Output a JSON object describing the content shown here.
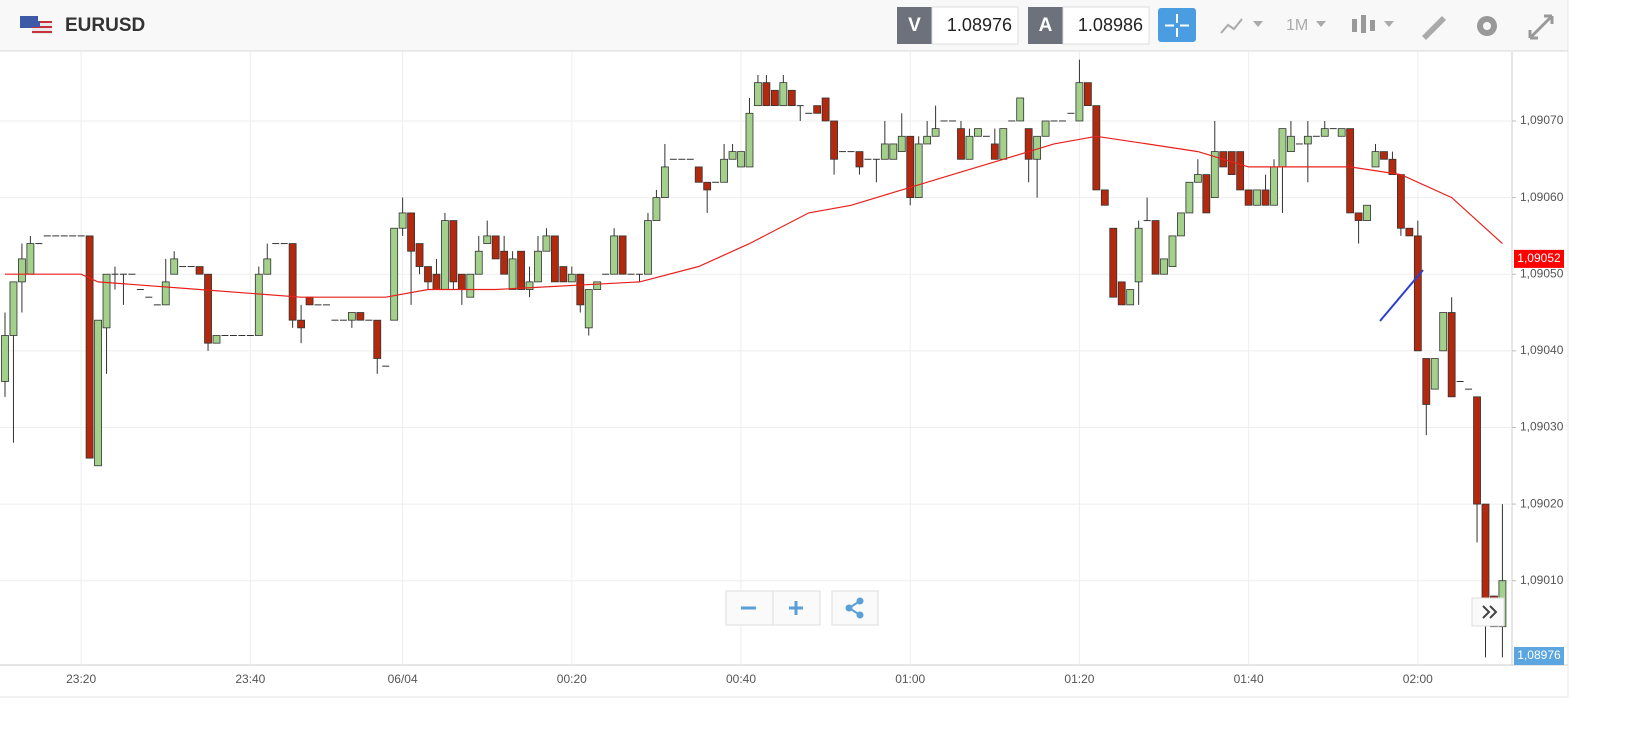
{
  "header": {
    "symbol": "EURUSD",
    "sell_label": "V",
    "sell": "1.08976",
    "buy_label": "A",
    "buy": "1.08986",
    "timeframe": "1M"
  },
  "bottom_price": "1,08976",
  "chart_data": {
    "type": "candlestick",
    "categories": [
      null,
      null,
      null,
      null,
      null,
      null,
      null,
      null,
      null,
      "23:20",
      null,
      null,
      null,
      null,
      null,
      null,
      null,
      null,
      null,
      null,
      null,
      null,
      null,
      null,
      null,
      null,
      null,
      null,
      null,
      "23:40",
      null,
      null,
      null,
      null,
      null,
      null,
      null,
      null,
      null,
      null,
      null,
      null,
      null,
      null,
      null,
      null,
      null,
      "06/04",
      null,
      null,
      null,
      null,
      null,
      null,
      null,
      null,
      null,
      null,
      null,
      null,
      null,
      null,
      null,
      null,
      null,
      null,
      null,
      "00:20",
      null,
      null,
      null,
      null,
      null,
      null,
      null,
      null,
      null,
      null,
      null,
      null,
      null,
      null,
      null,
      null,
      null,
      null,
      null,
      "00:40",
      null,
      null,
      null,
      null,
      null,
      null,
      null,
      null,
      null,
      null,
      null,
      null,
      null,
      null,
      null,
      null,
      null,
      null,
      null,
      "01:00",
      null,
      null,
      null,
      null,
      null,
      null,
      null,
      null,
      null,
      null,
      null,
      null,
      null,
      null,
      null,
      null,
      null,
      null,
      null,
      "01:20",
      null,
      null,
      null,
      null,
      null,
      null,
      null,
      null,
      null,
      null,
      null,
      null,
      null,
      null,
      null,
      null,
      null,
      null,
      null,
      "01:40",
      null,
      null,
      null,
      null,
      null,
      null,
      null,
      null,
      null,
      null,
      null,
      null,
      null,
      null,
      null,
      null,
      null,
      null,
      null,
      "02:00",
      null,
      null,
      null,
      null,
      null,
      null,
      null,
      null,
      null,
      null
    ],
    "ohlc": [
      [
        1.09036,
        1.09045,
        1.09034,
        1.09042
      ],
      [
        1.09042,
        1.09049,
        1.09028,
        1.09049
      ],
      [
        1.09049,
        1.09054,
        1.09045,
        1.09052
      ],
      [
        1.0905,
        1.09055,
        1.0905,
        1.09054
      ],
      [
        1.09054,
        1.09054,
        1.09054,
        1.09054
      ],
      [
        1.09055,
        1.09055,
        1.09055,
        1.09055
      ],
      [
        1.09055,
        1.09055,
        1.09055,
        1.09055
      ],
      [
        1.09055,
        1.09055,
        1.09055,
        1.09055
      ],
      [
        1.09055,
        1.09055,
        1.09055,
        1.09055
      ],
      [
        1.09055,
        1.09055,
        1.09055,
        1.09055
      ],
      [
        1.09055,
        1.09055,
        1.09026,
        1.09026
      ],
      [
        1.09025,
        1.09044,
        1.09025,
        1.09044
      ],
      [
        1.09043,
        1.0905,
        1.09037,
        1.0905
      ],
      [
        1.0905,
        1.09051,
        1.09048,
        1.0905
      ],
      [
        1.0905,
        1.0905,
        1.09046,
        1.0905
      ],
      [
        1.0905,
        1.0905,
        1.0905,
        1.0905
      ],
      [
        1.09048,
        1.09048,
        1.09048,
        1.09048
      ],
      [
        1.09047,
        1.09047,
        1.09047,
        1.09047
      ],
      [
        1.09046,
        1.09046,
        1.09046,
        1.09046
      ],
      [
        1.09046,
        1.09052,
        1.09046,
        1.09049
      ],
      [
        1.0905,
        1.09053,
        1.0905,
        1.09052
      ],
      [
        1.09051,
        1.09051,
        1.09051,
        1.09051
      ],
      [
        1.09051,
        1.09051,
        1.09051,
        1.09051
      ],
      [
        1.09051,
        1.09051,
        1.0905,
        1.0905
      ],
      [
        1.0905,
        1.0905,
        1.0904,
        1.09041
      ],
      [
        1.09041,
        1.09042,
        1.09041,
        1.09042
      ],
      [
        1.09042,
        1.09042,
        1.09042,
        1.09042
      ],
      [
        1.09042,
        1.09042,
        1.09042,
        1.09042
      ],
      [
        1.09042,
        1.09042,
        1.09042,
        1.09042
      ],
      [
        1.09042,
        1.09042,
        1.09042,
        1.09042
      ],
      [
        1.09042,
        1.09051,
        1.09042,
        1.0905
      ],
      [
        1.0905,
        1.09054,
        1.0905,
        1.09052
      ],
      [
        1.09054,
        1.09054,
        1.09054,
        1.09054
      ],
      [
        1.09054,
        1.09054,
        1.09054,
        1.09054
      ],
      [
        1.09054,
        1.09054,
        1.09043,
        1.09044
      ],
      [
        1.09044,
        1.09046,
        1.09041,
        1.09043
      ],
      [
        1.09047,
        1.09047,
        1.09046,
        1.09046
      ],
      [
        1.09046,
        1.09046,
        1.09046,
        1.09046
      ],
      [
        1.09046,
        1.09046,
        1.09046,
        1.09046
      ],
      [
        1.09044,
        1.09044,
        1.09044,
        1.09044
      ],
      [
        1.09044,
        1.09044,
        1.09044,
        1.09044
      ],
      [
        1.09044,
        1.09045,
        1.09043,
        1.09045
      ],
      [
        1.09045,
        1.09045,
        1.09044,
        1.09044
      ],
      [
        1.09044,
        1.09044,
        1.09044,
        1.09044
      ],
      [
        1.09044,
        1.09044,
        1.09037,
        1.09039
      ],
      [
        1.09038,
        1.09038,
        1.09038,
        1.09038
      ],
      [
        1.09044,
        1.09056,
        1.09044,
        1.09056
      ],
      [
        1.09056,
        1.0906,
        1.09055,
        1.09058
      ],
      [
        1.09058,
        1.09058,
        1.09046,
        1.09053
      ],
      [
        1.09054,
        1.09054,
        1.0905,
        1.09051
      ],
      [
        1.09051,
        1.09051,
        1.09048,
        1.09049
      ],
      [
        1.0905,
        1.09052,
        1.09048,
        1.09048
      ],
      [
        1.09048,
        1.09058,
        1.09048,
        1.09057
      ],
      [
        1.09057,
        1.09057,
        1.09048,
        1.09049
      ],
      [
        1.0905,
        1.0905,
        1.09046,
        1.09048
      ],
      [
        1.09047,
        1.0905,
        1.09047,
        1.0905
      ],
      [
        1.0905,
        1.09055,
        1.0905,
        1.09053
      ],
      [
        1.09054,
        1.09057,
        1.09054,
        1.09055
      ],
      [
        1.09055,
        1.09055,
        1.09052,
        1.09052
      ],
      [
        1.09053,
        1.09055,
        1.0905,
        1.0905
      ],
      [
        1.09048,
        1.09053,
        1.09048,
        1.09052
      ],
      [
        1.09053,
        1.09053,
        1.09048,
        1.09048
      ],
      [
        1.09048,
        1.09051,
        1.09047,
        1.09049
      ],
      [
        1.09049,
        1.09055,
        1.09049,
        1.09053
      ],
      [
        1.09053,
        1.09056,
        1.09053,
        1.09055
      ],
      [
        1.09055,
        1.09055,
        1.09049,
        1.09049
      ],
      [
        1.09051,
        1.09051,
        1.09049,
        1.09049
      ],
      [
        1.09049,
        1.09051,
        1.09049,
        1.0905
      ],
      [
        1.0905,
        1.0905,
        1.09045,
        1.09046
      ],
      [
        1.09043,
        1.09048,
        1.09042,
        1.09048
      ],
      [
        1.09048,
        1.09049,
        1.09048,
        1.09049
      ],
      [
        1.0905,
        1.0905,
        1.0905,
        1.0905
      ],
      [
        1.0905,
        1.09056,
        1.0905,
        1.09055
      ],
      [
        1.09055,
        1.09055,
        1.0905,
        1.0905
      ],
      [
        1.0905,
        1.0905,
        1.0905,
        1.0905
      ],
      [
        1.0905,
        1.0905,
        1.09049,
        1.0905
      ],
      [
        1.0905,
        1.09058,
        1.0905,
        1.09057
      ],
      [
        1.09057,
        1.09061,
        1.09057,
        1.0906
      ],
      [
        1.0906,
        1.09067,
        1.0906,
        1.09064
      ],
      [
        1.09065,
        1.09065,
        1.09065,
        1.09065
      ],
      [
        1.09065,
        1.09065,
        1.09065,
        1.09065
      ],
      [
        1.09065,
        1.09065,
        1.09065,
        1.09065
      ],
      [
        1.09064,
        1.09064,
        1.09062,
        1.09062
      ],
      [
        1.09062,
        1.09062,
        1.09058,
        1.09061
      ],
      [
        1.09062,
        1.09062,
        1.09062,
        1.09062
      ],
      [
        1.09062,
        1.09067,
        1.09062,
        1.09065
      ],
      [
        1.09065,
        1.09067,
        1.09065,
        1.09066
      ],
      [
        1.09064,
        1.09066,
        1.09064,
        1.09066
      ],
      [
        1.09064,
        1.09073,
        1.09064,
        1.09071
      ],
      [
        1.09072,
        1.09076,
        1.09072,
        1.09075
      ],
      [
        1.09075,
        1.09076,
        1.09072,
        1.09072
      ],
      [
        1.09074,
        1.09074,
        1.09072,
        1.09072
      ],
      [
        1.09072,
        1.09076,
        1.09072,
        1.09075
      ],
      [
        1.09074,
        1.09074,
        1.09072,
        1.09072
      ],
      [
        1.09072,
        1.09072,
        1.0907,
        1.09072
      ],
      [
        1.09071,
        1.09071,
        1.09071,
        1.09071
      ],
      [
        1.09072,
        1.09072,
        1.09071,
        1.09071
      ],
      [
        1.09073,
        1.09073,
        1.0907,
        1.0907
      ],
      [
        1.0907,
        1.0907,
        1.09063,
        1.09065
      ],
      [
        1.09066,
        1.09066,
        1.09066,
        1.09066
      ],
      [
        1.09066,
        1.09066,
        1.09066,
        1.09066
      ],
      [
        1.09066,
        1.09066,
        1.09063,
        1.09064
      ],
      [
        1.09065,
        1.09065,
        1.09065,
        1.09065
      ],
      [
        1.09065,
        1.09065,
        1.09062,
        1.09065
      ],
      [
        1.09065,
        1.0907,
        1.09065,
        1.09067
      ],
      [
        1.09065,
        1.09067,
        1.09065,
        1.09067
      ],
      [
        1.09066,
        1.09071,
        1.09066,
        1.09068
      ],
      [
        1.09068,
        1.09068,
        1.09059,
        1.0906
      ],
      [
        1.0906,
        1.09068,
        1.0906,
        1.09067
      ],
      [
        1.09067,
        1.0907,
        1.09067,
        1.09068
      ],
      [
        1.09068,
        1.09072,
        1.09068,
        1.09069
      ],
      [
        1.0907,
        1.0907,
        1.0907,
        1.0907
      ],
      [
        1.0907,
        1.0907,
        1.0907,
        1.0907
      ],
      [
        1.09069,
        1.0907,
        1.09065,
        1.09065
      ],
      [
        1.09065,
        1.09069,
        1.09065,
        1.09068
      ],
      [
        1.09068,
        1.09069,
        1.09068,
        1.09069
      ],
      [
        1.09068,
        1.09068,
        1.09068,
        1.09068
      ],
      [
        1.09067,
        1.09069,
        1.09065,
        1.09065
      ],
      [
        1.09065,
        1.09069,
        1.09065,
        1.09069
      ],
      [
        1.0907,
        1.0907,
        1.0907,
        1.0907
      ],
      [
        1.0907,
        1.09073,
        1.0907,
        1.09073
      ],
      [
        1.09069,
        1.09069,
        1.09062,
        1.09065
      ],
      [
        1.09065,
        1.09068,
        1.0906,
        1.09068
      ],
      [
        1.09068,
        1.0907,
        1.09068,
        1.0907
      ],
      [
        1.0907,
        1.0907,
        1.0907,
        1.0907
      ],
      [
        1.0907,
        1.0907,
        1.0907,
        1.0907
      ],
      [
        1.09071,
        1.09071,
        1.09071,
        1.09071
      ],
      [
        1.0907,
        1.09078,
        1.0907,
        1.09075
      ],
      [
        1.09075,
        1.09075,
        1.09072,
        1.09072
      ],
      [
        1.09072,
        1.09072,
        1.09061,
        1.09061
      ],
      [
        1.09061,
        1.09061,
        1.09059,
        1.09059
      ],
      [
        1.09056,
        1.09056,
        1.09047,
        1.09047
      ],
      [
        1.09049,
        1.09049,
        1.09046,
        1.09046
      ],
      [
        1.09046,
        1.09048,
        1.09046,
        1.09048
      ],
      [
        1.09049,
        1.09057,
        1.09046,
        1.09056
      ],
      [
        1.09057,
        1.0906,
        1.09057,
        1.09057
      ],
      [
        1.09057,
        1.09057,
        1.0905,
        1.0905
      ],
      [
        1.0905,
        1.09052,
        1.0905,
        1.09052
      ],
      [
        1.09051,
        1.09055,
        1.09051,
        1.09055
      ],
      [
        1.09055,
        1.09058,
        1.09055,
        1.09058
      ],
      [
        1.09058,
        1.09062,
        1.09058,
        1.09062
      ],
      [
        1.09062,
        1.09065,
        1.09062,
        1.09063
      ],
      [
        1.09063,
        1.09063,
        1.09058,
        1.09058
      ],
      [
        1.0906,
        1.0907,
        1.0906,
        1.09066
      ],
      [
        1.09066,
        1.09066,
        1.09064,
        1.09064
      ],
      [
        1.09066,
        1.09066,
        1.09063,
        1.09063
      ],
      [
        1.09066,
        1.09066,
        1.09061,
        1.09061
      ],
      [
        1.09061,
        1.09061,
        1.09059,
        1.09059
      ],
      [
        1.09059,
        1.09061,
        1.09059,
        1.09061
      ],
      [
        1.09061,
        1.09063,
        1.09059,
        1.09059
      ],
      [
        1.09059,
        1.09065,
        1.09059,
        1.09064
      ],
      [
        1.09064,
        1.09069,
        1.09058,
        1.09069
      ],
      [
        1.09066,
        1.0907,
        1.09066,
        1.09068
      ],
      [
        1.09067,
        1.09067,
        1.09067,
        1.09067
      ],
      [
        1.09067,
        1.0907,
        1.09062,
        1.09068
      ],
      [
        1.09068,
        1.09068,
        1.09068,
        1.09068
      ],
      [
        1.09068,
        1.0907,
        1.09068,
        1.09069
      ],
      [
        1.09069,
        1.09069,
        1.09069,
        1.09069
      ],
      [
        1.09068,
        1.09069,
        1.09068,
        1.09069
      ],
      [
        1.09069,
        1.09069,
        1.09058,
        1.09058
      ],
      [
        1.09058,
        1.09058,
        1.09054,
        1.09057
      ],
      [
        1.09057,
        1.09059,
        1.09057,
        1.09059
      ],
      [
        1.09064,
        1.09067,
        1.09064,
        1.09066
      ],
      [
        1.09066,
        1.09066,
        1.09065,
        1.09065
      ],
      [
        1.09065,
        1.09066,
        1.09063,
        1.09063
      ],
      [
        1.09063,
        1.09063,
        1.09055,
        1.09056
      ],
      [
        1.09056,
        1.09056,
        1.09055,
        1.09055
      ],
      [
        1.09055,
        1.09057,
        1.0904,
        1.0904
      ],
      [
        1.09039,
        1.09039,
        1.09029,
        1.09033
      ],
      [
        1.09035,
        1.09039,
        1.09035,
        1.09039
      ],
      [
        1.0904,
        1.09045,
        1.0904,
        1.09045
      ],
      [
        1.09045,
        1.09047,
        1.09034,
        1.09034
      ],
      [
        1.09036,
        1.09036,
        1.09036,
        1.09036
      ],
      [
        1.09035,
        1.09035,
        1.09035,
        1.09035
      ],
      [
        1.09034,
        1.09034,
        1.09015,
        1.0902
      ],
      [
        1.0902,
        1.0902,
        1.09,
        1.09007
      ],
      [
        1.09008,
        1.09008,
        1.09004,
        1.09004
      ],
      [
        1.09004,
        1.0902,
        1.09,
        1.0901
      ]
    ],
    "up_color": "#a3d08a",
    "down_color": "#b3290d",
    "ylim": [
      1.08999,
      1.09079
    ],
    "yticks": [
      {
        "value": 1.0901,
        "label": "1,09010"
      },
      {
        "value": 1.0902,
        "label": "1,09020"
      },
      {
        "value": 1.0903,
        "label": "1,09030"
      },
      {
        "value": 1.0904,
        "label": "1,09040"
      },
      {
        "value": 1.0905,
        "label": "1,09050"
      },
      {
        "value": 1.0906,
        "label": "1,09060"
      },
      {
        "value": 1.0907,
        "label": "1,09070"
      }
    ],
    "grid": true,
    "ma": {
      "color": "#e8201c",
      "x": [
        0,
        9,
        11,
        23,
        35,
        45,
        50,
        58,
        75,
        82,
        88,
        95,
        100,
        106,
        112,
        118,
        124,
        129,
        135,
        141,
        147,
        159,
        165,
        171,
        177
      ],
      "values": [
        1.0905,
        1.0905,
        1.09049,
        1.09048,
        1.09047,
        1.09047,
        1.09048,
        1.09048,
        1.09049,
        1.09051,
        1.09054,
        1.09058,
        1.09059,
        1.09061,
        1.09063,
        1.09065,
        1.09067,
        1.09068,
        1.09067,
        1.09066,
        1.09064,
        1.09064,
        1.09063,
        1.0906,
        1.09054
      ]
    },
    "price_marker": {
      "value": 1.09052,
      "label": "1,09052",
      "color": "#ff0000"
    }
  }
}
